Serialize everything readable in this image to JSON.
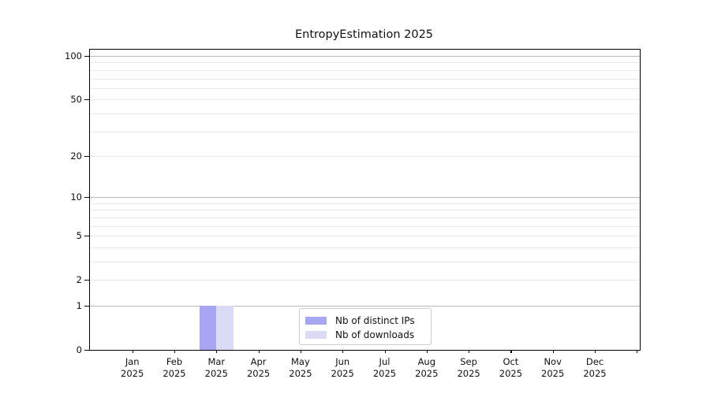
{
  "chart_data": {
    "type": "bar",
    "title": "EntropyEstimation 2025",
    "yscale": "log1p",
    "ylim": [
      0,
      110.5
    ],
    "grid": true,
    "y_ticks": [
      {
        "value": 0,
        "label": "0"
      },
      {
        "value": 1,
        "label": "1"
      },
      {
        "value": 2,
        "label": "2"
      },
      {
        "value": 5,
        "label": "5"
      },
      {
        "value": 10,
        "label": "10"
      },
      {
        "value": 20,
        "label": "20"
      },
      {
        "value": 50,
        "label": "50"
      },
      {
        "value": 100,
        "label": "100"
      }
    ],
    "y_major_gridlines": [
      1,
      10,
      100
    ],
    "y_minor_gridlines": [
      2,
      3,
      4,
      5,
      6,
      7,
      8,
      9,
      20,
      30,
      40,
      50,
      60,
      70,
      80,
      90
    ],
    "categories": [
      {
        "month": "Jan",
        "year": "2025"
      },
      {
        "month": "Feb",
        "year": "2025"
      },
      {
        "month": "Mar",
        "year": "2025"
      },
      {
        "month": "Apr",
        "year": "2025"
      },
      {
        "month": "May",
        "year": "2025"
      },
      {
        "month": "Jun",
        "year": "2025"
      },
      {
        "month": "Jul",
        "year": "2025"
      },
      {
        "month": "Aug",
        "year": "2025"
      },
      {
        "month": "Sep",
        "year": "2025"
      },
      {
        "month": "Oct",
        "year": "2025"
      },
      {
        "month": "Nov",
        "year": "2025"
      },
      {
        "month": "Dec",
        "year": "2025"
      }
    ],
    "series": [
      {
        "name": "Nb of distinct IPs",
        "color": "#a6a6f2",
        "values": [
          0,
          0,
          1,
          0,
          0,
          0,
          0,
          0,
          0,
          0,
          0,
          0
        ]
      },
      {
        "name": "Nb of downloads",
        "color": "#dbdbf8",
        "values": [
          0,
          0,
          1,
          0,
          0,
          0,
          0,
          0,
          0,
          0,
          0,
          0
        ]
      }
    ],
    "legend": {
      "position": "lower center",
      "entries": [
        "Nb of distinct IPs",
        "Nb of downloads"
      ]
    },
    "colors": {
      "major_grid": "#b8b8b8",
      "minor_grid": "#e9e9e9",
      "spine": "#000000",
      "text": "#111111"
    }
  }
}
